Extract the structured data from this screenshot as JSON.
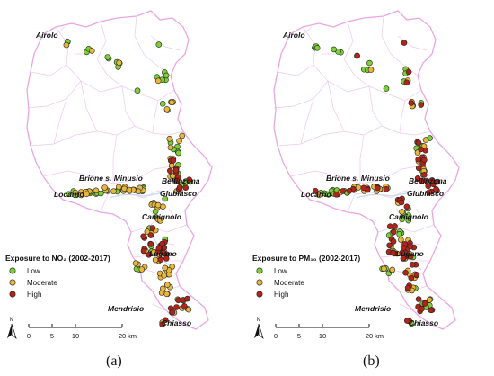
{
  "panels": [
    {
      "caption": "(a)",
      "legend": {
        "title": "Exposure to NO₂ (2002-2017)",
        "low": "Low",
        "moderate": "Moderate",
        "high": "High"
      },
      "places": [
        "Airolo",
        "Brione s. Minusio",
        "Bellinzona",
        "Locarno",
        "Giubiasco",
        "Camignolo",
        "Lugano",
        "Mendrisio",
        "Chiasso"
      ],
      "hotspot_level": "moderate"
    },
    {
      "caption": "(b)",
      "legend": {
        "title": "Exposure to PM₁₀ (2002-2017)",
        "low": "Low",
        "moderate": "Moderate",
        "high": "High"
      },
      "places": [
        "Airolo",
        "Brione s. Minusio",
        "Bellinzona",
        "Locarno",
        "Giubiasco",
        "Camignolo",
        "Lugano",
        "Mendrisio",
        "Chiasso"
      ],
      "hotspot_level": "high"
    }
  ],
  "scale": {
    "ticks": [
      "0",
      "5",
      "10",
      "20"
    ],
    "unit": "km"
  },
  "north_label": "N",
  "colors": {
    "low": "#7ccf35",
    "moderate": "#e8b73a",
    "high": "#b0241a",
    "border": "#e9a6e3",
    "district_lines": "#ecc9e8",
    "point_stroke": "#222222"
  }
}
